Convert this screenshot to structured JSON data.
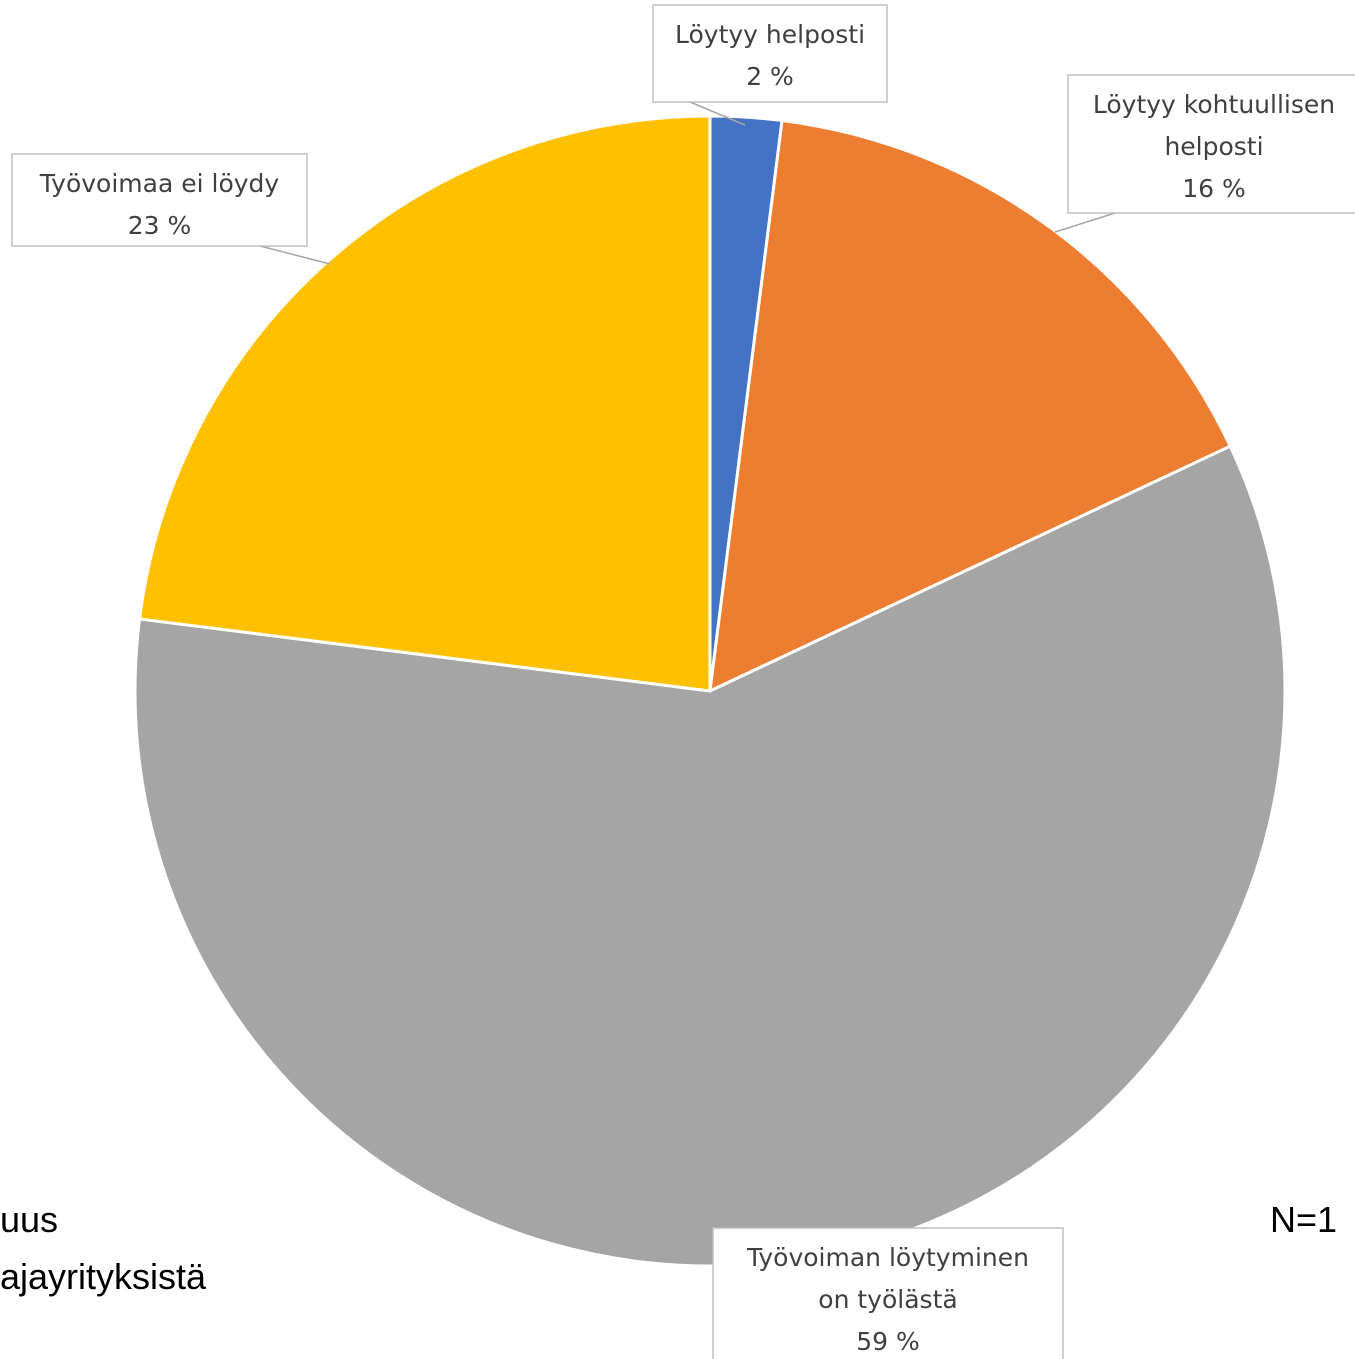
{
  "chart_data": {
    "type": "pie",
    "slices": [
      {
        "label_lines": [
          "Löytyy helposti"
        ],
        "percent_label": "2 %",
        "value": 2,
        "color": "#4472C4"
      },
      {
        "label_lines": [
          "Löytyy kohtuullisen",
          "helposti"
        ],
        "percent_label": "16 %",
        "value": 16,
        "color": "#ED7D31"
      },
      {
        "label_lines": [
          "Työvoiman löytyminen",
          "on työlästä"
        ],
        "percent_label": "59 %",
        "value": 59,
        "color": "#A5A5A5"
      },
      {
        "label_lines": [
          "Työvoimaa ei löydy"
        ],
        "percent_label": "23 %",
        "value": 23,
        "color": "#FFC000"
      }
    ]
  },
  "footer": {
    "left_line1": "uus",
    "left_line2": "ajayrityksistä",
    "right": "N=1"
  }
}
